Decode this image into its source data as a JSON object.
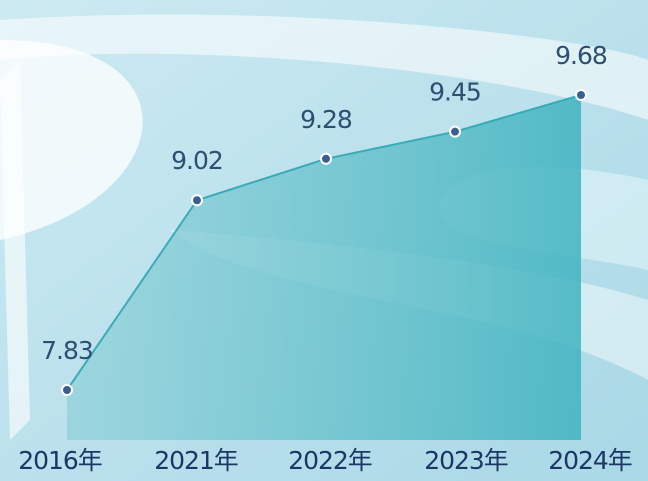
{
  "chart_data": {
    "type": "area",
    "categories": [
      "2016年",
      "2021年",
      "2022年",
      "2023年",
      "2024年"
    ],
    "values": [
      7.83,
      9.02,
      9.28,
      9.45,
      9.68
    ],
    "color": "#2fa6b3"
  }
}
